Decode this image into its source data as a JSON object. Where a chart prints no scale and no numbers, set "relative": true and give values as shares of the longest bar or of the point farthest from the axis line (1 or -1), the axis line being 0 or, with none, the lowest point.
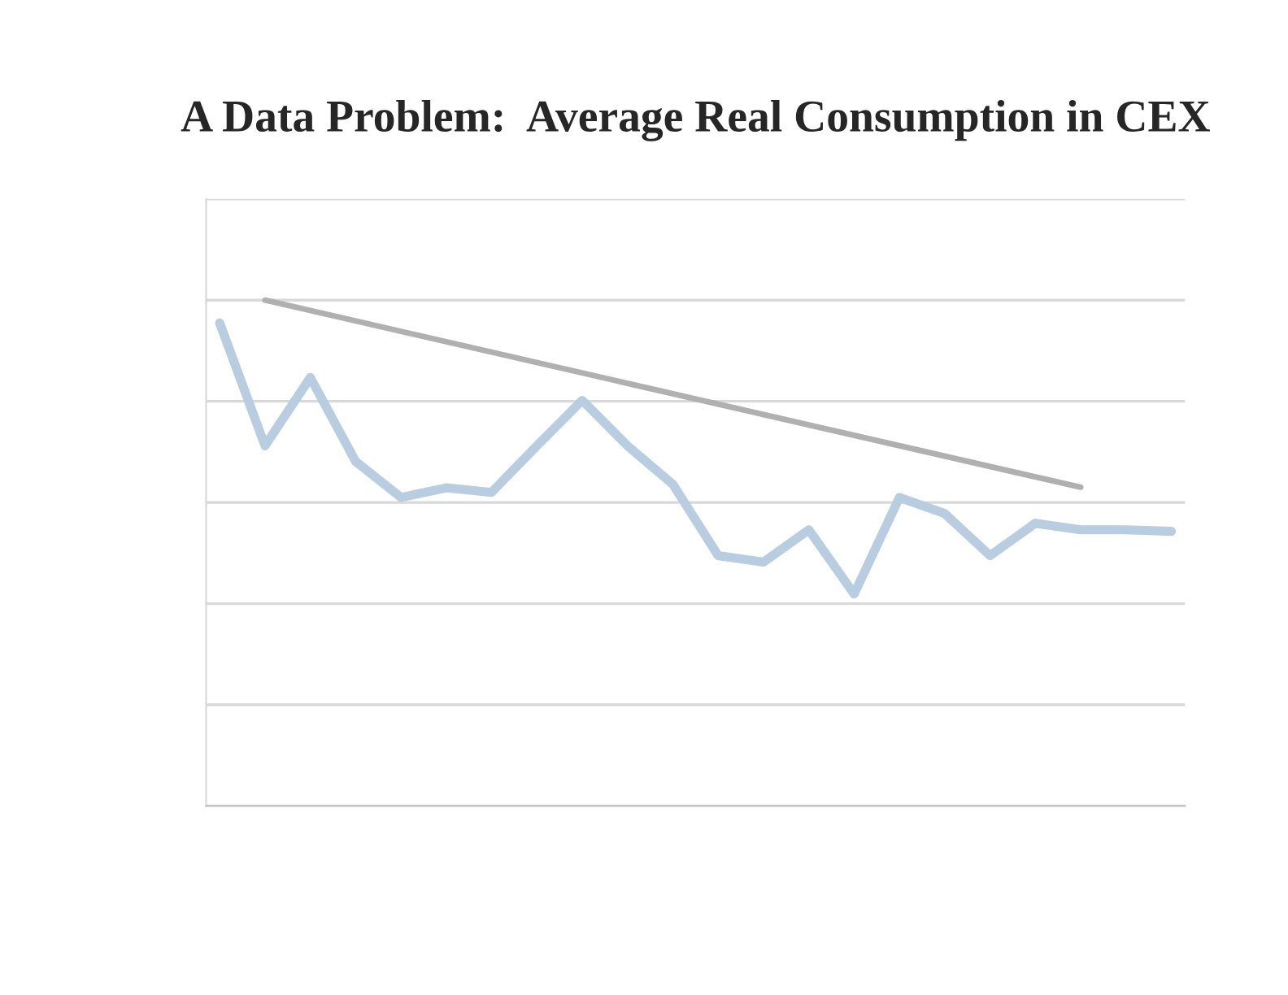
{
  "chart_data": {
    "type": "line",
    "title": "A Data Problem:  Average Real Consumption in CEX",
    "relative": true,
    "grid": "y",
    "tick_labels": false,
    "categories": [
      null,
      null,
      null,
      null,
      null,
      null,
      null,
      null,
      null,
      null,
      null,
      null,
      null,
      null,
      null,
      null,
      null,
      null,
      null,
      null,
      null,
      null
    ],
    "series": [
      {
        "color": "#b9cde0",
        "values": [
          0.955,
          0.712,
          0.847,
          0.681,
          0.61,
          0.629,
          0.62,
          0.712,
          0.802,
          0.712,
          0.636,
          0.495,
          0.482,
          0.546,
          0.419,
          0.61,
          0.578,
          0.495,
          0.559,
          0.546,
          0.546,
          0.543
        ]
      },
      {
        "type": "line",
        "color": "#b0b0b0",
        "values": [
          null,
          1,
          null,
          null,
          null,
          null,
          null,
          null,
          null,
          null,
          null,
          null,
          null,
          null,
          null,
          null,
          null,
          null,
          null,
          0.63,
          null,
          null
        ]
      }
    ]
  }
}
